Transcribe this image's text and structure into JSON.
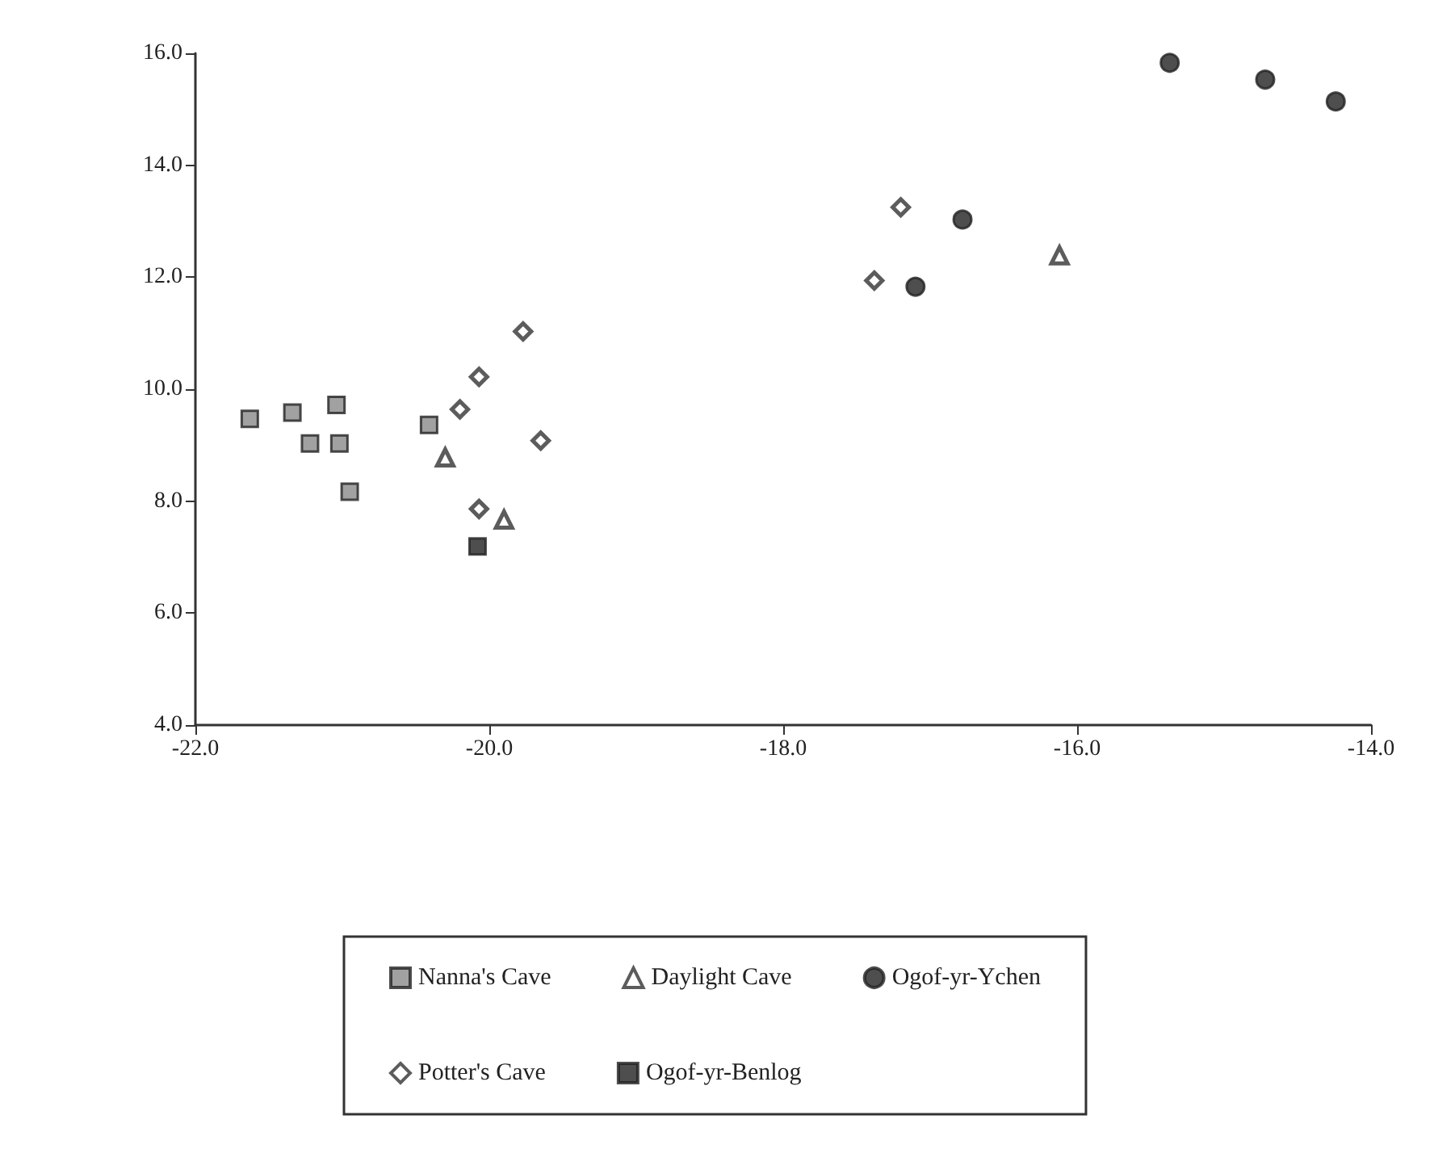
{
  "chart_data": {
    "type": "scatter",
    "xlim": [
      -22,
      -14
    ],
    "xticks": [
      {
        "value": -22,
        "label": "-22.0"
      },
      {
        "value": -20,
        "label": "-20.0"
      },
      {
        "value": -18,
        "label": "-18.0"
      },
      {
        "value": -16,
        "label": "-16.0"
      },
      {
        "value": -14,
        "label": "-14.0"
      }
    ],
    "ylim": [
      4,
      16
    ],
    "yticks": [
      {
        "value": 4,
        "label": "4.0"
      },
      {
        "value": 6,
        "label": "6.0"
      },
      {
        "value": 8,
        "label": "8.0"
      },
      {
        "value": 10,
        "label": "10.0"
      },
      {
        "value": 12,
        "label": "12.0"
      },
      {
        "value": 14,
        "label": "14.0"
      },
      {
        "value": 16,
        "label": "16.0"
      }
    ],
    "grid": false,
    "legend": "bottom",
    "series": [
      {
        "name": "Nanna's Cave",
        "marker": "square",
        "color": "#8a8a8a",
        "x": [
          -21.63,
          -21.34,
          -21.04,
          -21.22,
          -21.02,
          -20.95,
          -20.41
        ],
        "values": [
          9.47,
          9.58,
          9.72,
          9.03,
          9.03,
          8.17,
          9.36
        ]
      },
      {
        "name": "Daylight Cave",
        "marker": "triangle",
        "color": "#333333",
        "x": [
          -20.3,
          -19.9,
          -16.12
        ],
        "values": [
          8.78,
          7.67,
          12.39
        ]
      },
      {
        "name": "Ogof-yr-Ychen",
        "marker": "circle",
        "color": "#222222",
        "x": [
          -17.1,
          -16.78,
          -15.37,
          -14.72,
          -14.24
        ],
        "values": [
          11.83,
          13.03,
          15.83,
          15.53,
          15.14
        ]
      },
      {
        "name": "Potter's Cave",
        "marker": "diamond",
        "color": "#333333",
        "x": [
          -20.2,
          -20.07,
          -19.77,
          -19.65,
          -20.07,
          -17.38,
          -17.2
        ],
        "values": [
          9.64,
          10.22,
          11.03,
          9.08,
          7.86,
          11.94,
          13.25
        ]
      },
      {
        "name": "Ogof-yr-Benlog",
        "marker": "square",
        "color": "#222222",
        "x": [
          -20.08
        ],
        "values": [
          7.19
        ]
      }
    ]
  }
}
